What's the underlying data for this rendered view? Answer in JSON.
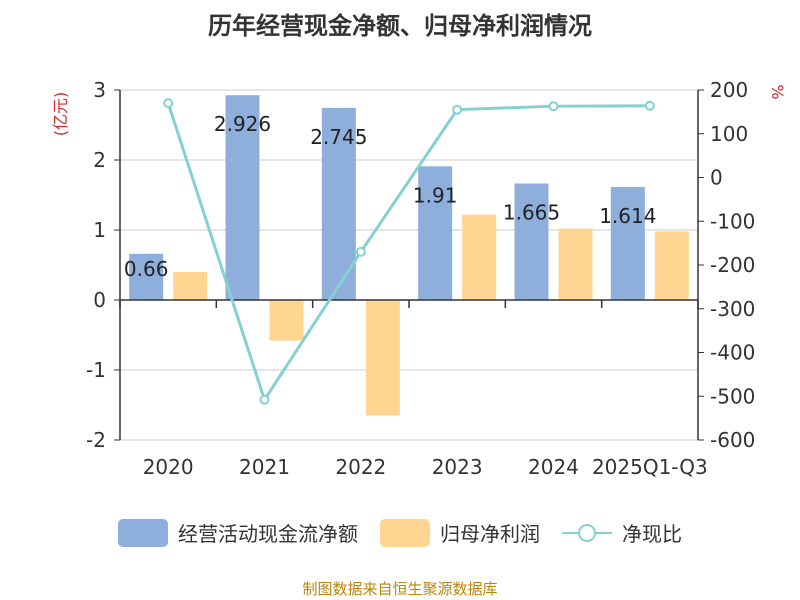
{
  "title": "历年经营现金净额、归母净利润情况",
  "source": "制图数据来自恒生聚源数据库",
  "chart_data": {
    "type": "bar",
    "categories": [
      "2020",
      "2021",
      "2022",
      "2023",
      "2024",
      "2025Q1-Q3"
    ],
    "series": [
      {
        "name": "经营活动现金流净额",
        "kind": "bar",
        "axis": "left",
        "color": "#8eafdc",
        "values": [
          0.66,
          2.926,
          2.745,
          1.91,
          1.665,
          1.614
        ],
        "labels": [
          "0.66",
          "2.926",
          "2.745",
          "1.91",
          "1.665",
          "1.614"
        ]
      },
      {
        "name": "归母净利润",
        "kind": "bar",
        "axis": "left",
        "color": "#ffd591",
        "values": [
          0.4,
          -0.58,
          -1.65,
          1.22,
          1.02,
          0.98
        ]
      },
      {
        "name": "净现比",
        "kind": "line",
        "axis": "right",
        "color": "#86cfd3",
        "values": [
          170,
          -508,
          -170,
          155,
          163,
          164
        ]
      }
    ],
    "ylabel": "(亿元)",
    "y2label": "%",
    "ylim": [
      -2,
      3
    ],
    "y_ticks": [
      "3",
      "2",
      "1",
      "0",
      "-1",
      "-2"
    ],
    "y2lim": [
      -600,
      200
    ],
    "y2_ticks": [
      "200",
      "100",
      "0",
      "-100",
      "-200",
      "-300",
      "-400",
      "-500",
      "-600"
    ],
    "grid": true,
    "legend_position": "bottom"
  }
}
